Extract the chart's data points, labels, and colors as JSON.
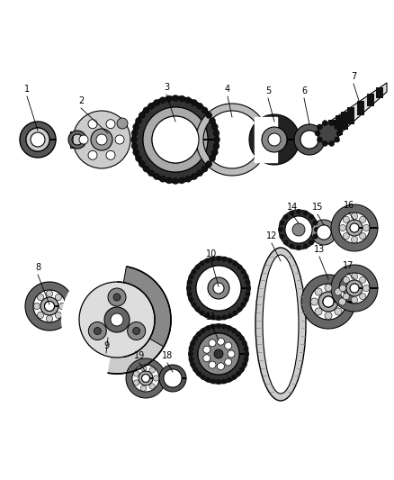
{
  "bg_color": "#ffffff",
  "lc": "#000000",
  "label_fontsize": 7.0,
  "fig_w": 4.38,
  "fig_h": 5.33,
  "dpi": 100
}
